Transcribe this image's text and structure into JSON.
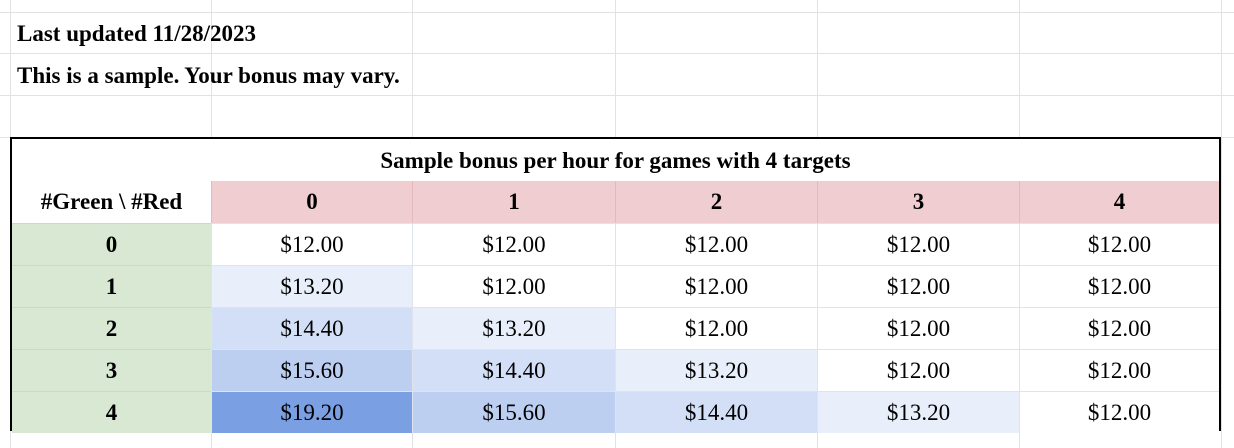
{
  "notes": {
    "last_updated": "Last updated 11/28/2023",
    "disclaimer": "This is a sample. Your bonus may vary."
  },
  "table": {
    "title": "Sample bonus per hour for games with 4 targets",
    "corner_label": "#Green \\ #Red",
    "column_headers": [
      "0",
      "1",
      "2",
      "3",
      "4"
    ],
    "rows": [
      {
        "label": "0",
        "values": [
          "$12.00",
          "$12.00",
          "$12.00",
          "$12.00",
          "$12.00"
        ]
      },
      {
        "label": "1",
        "values": [
          "$13.20",
          "$12.00",
          "$12.00",
          "$12.00",
          "$12.00"
        ]
      },
      {
        "label": "2",
        "values": [
          "$14.40",
          "$13.20",
          "$12.00",
          "$12.00",
          "$12.00"
        ]
      },
      {
        "label": "3",
        "values": [
          "$15.60",
          "$14.40",
          "$13.20",
          "$12.00",
          "$12.00"
        ]
      },
      {
        "label": "4",
        "values": [
          "$19.20",
          "$15.60",
          "$14.40",
          "$13.20",
          "$12.00"
        ]
      }
    ],
    "colors": {
      "column_header_bg": "#f0cdd0",
      "row_header_bg": "#d9e8d3",
      "scale_low": "#ffffff",
      "scale_high": "#7b9fe3"
    }
  }
}
